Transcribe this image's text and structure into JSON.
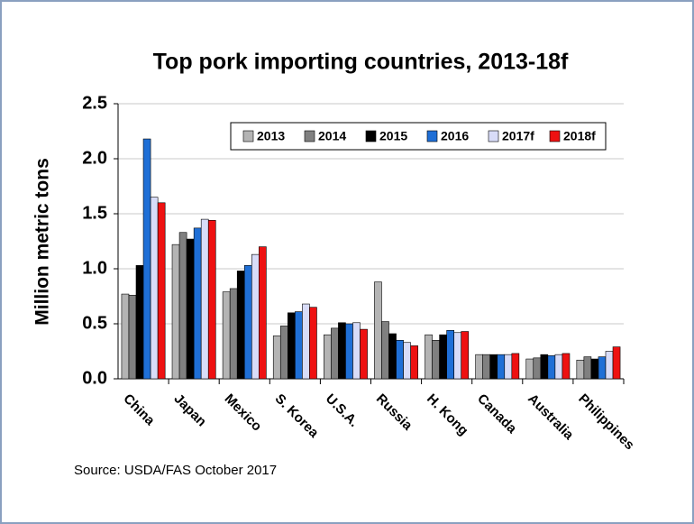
{
  "chart_data": {
    "type": "bar",
    "title": "Top pork importing countries, 2013-18f",
    "y_label": "Million metric tons",
    "source": "Source: USDA/FAS  October 2017",
    "categories": [
      "China",
      "Japan",
      "Mexico",
      "S. Korea",
      "U.S.A.",
      "Russia",
      "H. Kong",
      "Canada",
      "Australia",
      "Philippines"
    ],
    "series": [
      {
        "name": "2013",
        "color": "#b4b4b4",
        "values": [
          0.77,
          1.22,
          0.79,
          0.39,
          0.4,
          0.88,
          0.4,
          0.22,
          0.18,
          0.17
        ]
      },
      {
        "name": "2014",
        "color": "#808080",
        "values": [
          0.76,
          1.33,
          0.82,
          0.48,
          0.46,
          0.52,
          0.35,
          0.22,
          0.19,
          0.2
        ]
      },
      {
        "name": "2015",
        "color": "#000000",
        "values": [
          1.03,
          1.27,
          0.98,
          0.6,
          0.51,
          0.41,
          0.4,
          0.22,
          0.22,
          0.18
        ]
      },
      {
        "name": "2016",
        "color": "#1f6fd6",
        "values": [
          2.18,
          1.37,
          1.03,
          0.61,
          0.5,
          0.35,
          0.44,
          0.22,
          0.21,
          0.2
        ]
      },
      {
        "name": "2017f",
        "color": "#d8dcf8",
        "values": [
          1.65,
          1.45,
          1.13,
          0.68,
          0.51,
          0.33,
          0.42,
          0.22,
          0.22,
          0.25
        ]
      },
      {
        "name": "2018f",
        "color": "#ee1111",
        "values": [
          1.6,
          1.44,
          1.2,
          0.65,
          0.45,
          0.3,
          0.43,
          0.23,
          0.23,
          0.29
        ]
      }
    ],
    "ylim": [
      0,
      2.5
    ],
    "yticks": [
      {
        "value": 0,
        "label": "0.0"
      },
      0.5,
      {
        "value": 1,
        "label": "1.0"
      },
      1.5,
      {
        "value": 2,
        "label": "2.0"
      },
      2.5
    ],
    "grid": true,
    "legend": "top-right"
  }
}
